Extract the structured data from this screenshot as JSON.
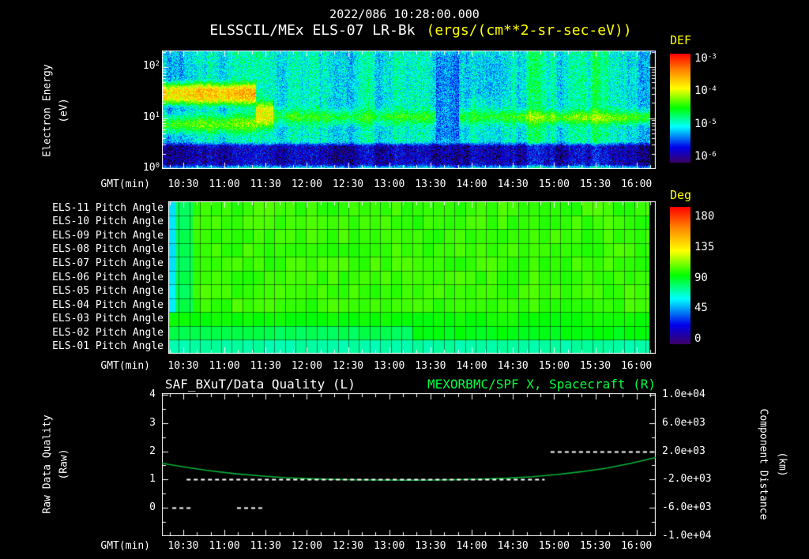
{
  "header": {
    "timestamp": "2022/086 10:28:00.000",
    "title": "ELSSCIL/MEx ELS-07 LR-Bk",
    "units": "(ergs/(cm**2-sr-sec-eV))"
  },
  "time_axis": {
    "label": "GMT(min)",
    "ticks": [
      "10:30",
      "11:00",
      "11:30",
      "12:00",
      "12:30",
      "13:00",
      "13:30",
      "14:00",
      "14:30",
      "15:00",
      "15:30",
      "16:00"
    ]
  },
  "panel1": {
    "ylabel_line1": "Electron Energy",
    "ylabel_line2": "(eV)",
    "yticks": [
      {
        "base": "10",
        "exp": "2"
      },
      {
        "base": "10",
        "exp": "1"
      },
      {
        "base": "10",
        "exp": "0"
      }
    ],
    "colorbar_title": "DEF",
    "colorbar_ticks": [
      {
        "base": "10",
        "exp": "-3"
      },
      {
        "base": "10",
        "exp": "-4"
      },
      {
        "base": "10",
        "exp": "-5"
      },
      {
        "base": "10",
        "exp": "-6"
      }
    ]
  },
  "panel2": {
    "row_labels": [
      "ELS-11 Pitch Angle",
      "ELS-10 Pitch Angle",
      "ELS-09 Pitch Angle",
      "ELS-08 Pitch Angle",
      "ELS-07 Pitch Angle",
      "ELS-06 Pitch Angle",
      "ELS-05 Pitch Angle",
      "ELS-04 Pitch Angle",
      "ELS-03 Pitch Angle",
      "ELS-02 Pitch Angle",
      "ELS-01 Pitch Angle"
    ],
    "colorbar_title": "Deg",
    "colorbar_ticks": [
      "180",
      "135",
      "90",
      "45",
      "0"
    ]
  },
  "panel3": {
    "title_left": "SAF_BXuT/Data Quality (L)",
    "title_right": "MEXORBMC/SPF X, Spacecraft (R)",
    "ylabel_left_line1": "Raw Data Quality",
    "ylabel_left_line2": "(Raw)",
    "ylabel_right_line1": "Component Distance",
    "ylabel_right_line2": "(km)",
    "left_ticks": [
      "4",
      "3",
      "2",
      "1",
      "0"
    ],
    "right_ticks": [
      "1.0e+04",
      "6.0e+03",
      "2.0e+03",
      "-2.0e+03",
      "-6.0e+03",
      "-1.0e+04"
    ]
  },
  "colors": {
    "background": "#000000",
    "text": "#ffffff",
    "accent_yellow": "#ffff00",
    "accent_green": "#00ff41",
    "curve_green": "#00b437"
  },
  "chart_data": [
    {
      "id": "electron-energy-spectrogram",
      "type": "heatmap",
      "title": "ELSSCIL/MEx ELS-07 LR-Bk",
      "units": "ergs/(cm**2-sr-sec-eV)",
      "xlabel": "GMT(min)",
      "x_ticks": [
        "10:30",
        "11:00",
        "11:30",
        "12:00",
        "12:30",
        "13:00",
        "13:30",
        "14:00",
        "14:30",
        "15:00",
        "15:30",
        "16:00"
      ],
      "x_range": [
        "10:15",
        "16:14"
      ],
      "ylabel": "Electron Energy (eV)",
      "yscale": "log",
      "ylim": [
        1,
        212
      ],
      "colorbar": {
        "label": "DEF",
        "ticks_log10": [
          -3,
          -4,
          -5,
          -6
        ]
      },
      "background_log10_flux": -5.45,
      "features": [
        {
          "desc": "intense electron flux band 15-62 eV from start until ~11:25",
          "t": [
            0,
            0.19
          ],
          "e": [
            15,
            62
          ],
          "v": -4.05,
          "soft": 0.25
        },
        {
          "desc": "enhanced flux below the intense band",
          "t": [
            0,
            0.19
          ],
          "e": [
            4,
            15
          ],
          "v": -4.7,
          "soft": 0.3
        },
        {
          "desc": "transition blob ~11:25-11:35",
          "t": [
            0.19,
            0.225
          ],
          "e": [
            5,
            28
          ],
          "v": -4.35,
          "soft": 0.3
        },
        {
          "desc": "steady 6-19 eV photoelectron band 11:35-16:10",
          "t": [
            0.225,
            1.0
          ],
          "e": [
            6,
            19
          ],
          "v": -4.85,
          "soft": 0.3
        },
        {
          "desc": "dim column near 13:35",
          "t": [
            0.555,
            0.6
          ],
          "e": [
            3,
            212
          ],
          "v": -5.75,
          "soft": 0.15
        },
        {
          "desc": "dim region 13:55-14:25 above band",
          "t": [
            0.615,
            0.7
          ],
          "e": [
            22,
            212
          ],
          "v": -5.6,
          "soft": 0.15
        },
        {
          "desc": "band brightening 14:30-16:05",
          "t": [
            0.72,
            0.985
          ],
          "e": [
            7,
            15
          ],
          "v": -4.6,
          "soft": 0.25
        },
        {
          "desc": "detector noise floor below ~3.6 eV",
          "t": [
            0,
            1.0
          ],
          "e": [
            1,
            3.6
          ],
          "v": -6.3,
          "soft": 0.12
        },
        {
          "desc": "no data at right edge",
          "t": [
            0.988,
            1.0
          ],
          "e": [
            1,
            212
          ],
          "v": -7.5,
          "soft": 0.05
        }
      ]
    },
    {
      "id": "pitch-angle-stack",
      "type": "heatmap",
      "rows": [
        "ELS-11 Pitch Angle",
        "ELS-10 Pitch Angle",
        "ELS-09 Pitch Angle",
        "ELS-08 Pitch Angle",
        "ELS-07 Pitch Angle",
        "ELS-06 Pitch Angle",
        "ELS-05 Pitch Angle",
        "ELS-04 Pitch Angle",
        "ELS-03 Pitch Angle",
        "ELS-02 Pitch Angle",
        "ELS-01 Pitch Angle"
      ],
      "colorbar": {
        "label": "Deg",
        "ticks": [
          180,
          135,
          90,
          45,
          0
        ]
      },
      "base_deg": 97,
      "features": [
        {
          "desc": "cyan column at start",
          "rows": [
            0,
            10
          ],
          "t": [
            0,
            0.014
          ],
          "deg": 57
        },
        {
          "desc": "lower pitch angles near start",
          "rows": [
            0,
            10
          ],
          "t": [
            0.014,
            0.05
          ],
          "deg": 80
        },
        {
          "desc": "ELS-01 lower pitch angle full interval",
          "rows": [
            10,
            10
          ],
          "t": [
            0,
            1.0
          ],
          "deg": 70
        },
        {
          "desc": "ELS-02 left half",
          "rows": [
            9,
            9
          ],
          "t": [
            0,
            0.5
          ],
          "deg": 80
        },
        {
          "desc": "ELS-02 right half",
          "rows": [
            9,
            9
          ],
          "t": [
            0.5,
            1.0
          ],
          "deg": 88
        },
        {
          "desc": "ELS-03 slightly lower",
          "rows": [
            8,
            8
          ],
          "t": [
            0,
            1.0
          ],
          "deg": 91
        },
        {
          "desc": "no data right edge",
          "rows": [
            0,
            10
          ],
          "t": [
            0.986,
            1.0
          ],
          "deg": -1
        }
      ]
    },
    {
      "id": "quality-and-spacecraft-x",
      "type": "line",
      "xlabel": "GMT(min)",
      "left_axis": {
        "label": "Raw Data Quality (Raw)",
        "lim": [
          -1,
          4
        ],
        "ticks": [
          4,
          3,
          2,
          1,
          0
        ]
      },
      "right_axis": {
        "label": "Component Distance (km)",
        "lim": [
          -10000,
          10000
        ],
        "ticks": [
          10000,
          6000,
          2000,
          -2000,
          -6000,
          -10000
        ]
      },
      "series": [
        {
          "name": "SAF_BXuT/Data Quality (L)",
          "axis": "left",
          "color": "#ffffff",
          "style": "dashed",
          "segments": [
            {
              "level": 0,
              "t": [
                0.021,
                0.061
              ]
            },
            {
              "level": 0,
              "t": [
                0.152,
                0.203
              ]
            },
            {
              "level": 1,
              "t": [
                0.05,
                0.775
              ]
            },
            {
              "level": 2,
              "t": [
                0.787,
                0.998
              ]
            }
          ]
        },
        {
          "name": "MEXORBMC/SPF X, Spacecraft (R)",
          "axis": "right",
          "color": "#00b437",
          "style": "solid",
          "x_frac": [
            0,
            0.05,
            0.1,
            0.15,
            0.2,
            0.25,
            0.3,
            0.35,
            0.4,
            0.45,
            0.5,
            0.55,
            0.6,
            0.65,
            0.7,
            0.75,
            0.8,
            0.85,
            0.9,
            0.95,
            1
          ],
          "km": [
            300,
            -300,
            -800,
            -1200,
            -1500,
            -1750,
            -1900,
            -2000,
            -2060,
            -2090,
            -2100,
            -2080,
            -2030,
            -1950,
            -1820,
            -1600,
            -1300,
            -900,
            -400,
            300,
            1100
          ]
        }
      ]
    }
  ]
}
